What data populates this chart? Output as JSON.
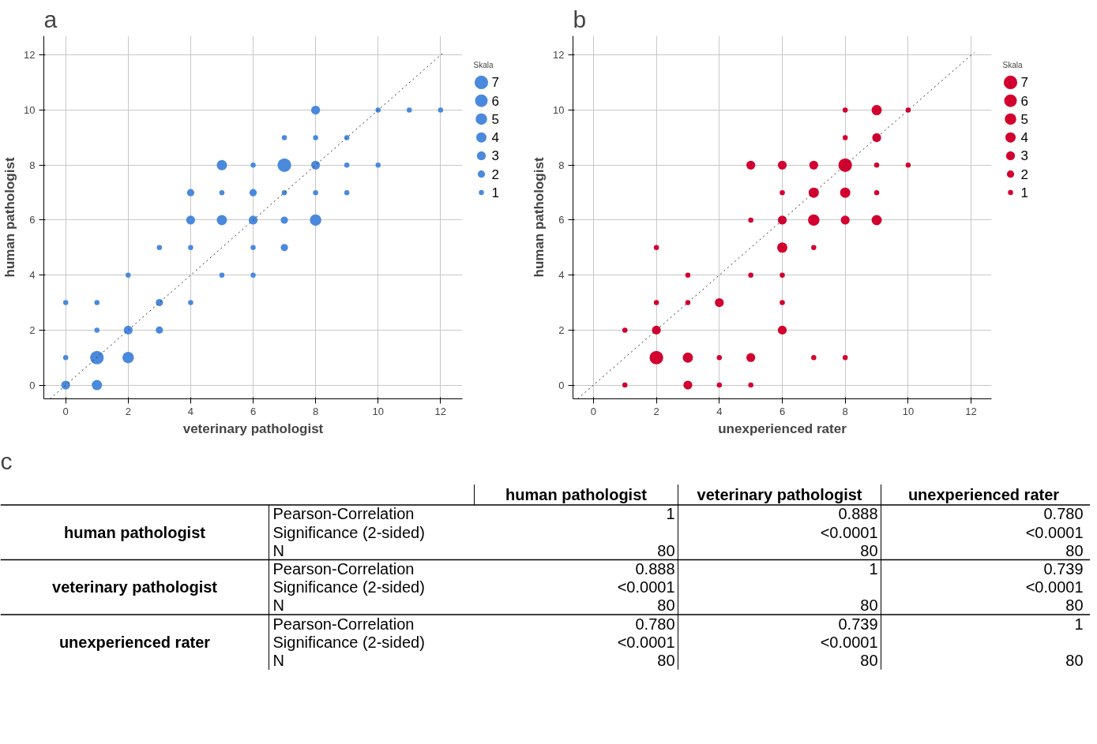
{
  "chart_data": [
    {
      "type": "bubble",
      "title": "a",
      "xlabel": "veterinary pathologist",
      "ylabel": "human pathologist",
      "legend_title": "Skala",
      "size_legend": [
        7,
        6,
        5,
        4,
        3,
        2,
        1
      ],
      "grid": true,
      "xlim": [
        -0.7,
        12.7
      ],
      "ylim": [
        -0.5,
        12.7
      ],
      "xticks": [
        0,
        2,
        4,
        6,
        8,
        10,
        12
      ],
      "yticks": [
        0,
        2,
        4,
        6,
        8,
        10,
        12
      ],
      "series": [
        {
          "type": "bubble",
          "color": "#4a89dc",
          "x": [
            0,
            1,
            0,
            1,
            2,
            1,
            2,
            3,
            0,
            1,
            3,
            4,
            2,
            5,
            6,
            3,
            4,
            6,
            7,
            4,
            5,
            6,
            7,
            8,
            4,
            5,
            6,
            7,
            8,
            9,
            5,
            6,
            7,
            8,
            9,
            10,
            7,
            8,
            9,
            8,
            10,
            11,
            12
          ],
          "values": [
            0,
            0,
            1,
            1,
            1,
            2,
            2,
            2,
            3,
            3,
            3,
            3,
            4,
            4,
            4,
            5,
            5,
            5,
            5,
            6,
            6,
            6,
            6,
            6,
            7,
            7,
            7,
            7,
            7,
            7,
            8,
            8,
            8,
            8,
            8,
            8,
            9,
            9,
            9,
            10,
            10,
            10,
            10
          ],
          "sizes": [
            3,
            4,
            1,
            7,
            5,
            1,
            3,
            2,
            1,
            1,
            2,
            1,
            1,
            1,
            1,
            1,
            1,
            1,
            2,
            3,
            4,
            3,
            2,
            5,
            2,
            1,
            2,
            1,
            1,
            1,
            4,
            1,
            7,
            3,
            1,
            1,
            1,
            1,
            1,
            3,
            1,
            1,
            1
          ]
        },
        {
          "type": "line",
          "color": "#333333",
          "line_style": "dotted",
          "x": [
            -0.5,
            12.1
          ],
          "values": [
            -0.5,
            12.1
          ]
        }
      ]
    },
    {
      "type": "bubble",
      "title": "b",
      "xlabel": "unexperienced rater",
      "ylabel": "human pathologist",
      "legend_title": "Skala",
      "size_legend": [
        7,
        6,
        5,
        4,
        3,
        2,
        1
      ],
      "grid": true,
      "xlim": [
        -0.65,
        12.65
      ],
      "ylim": [
        -0.5,
        12.7
      ],
      "xticks": [
        0,
        2,
        4,
        6,
        8,
        10,
        12
      ],
      "yticks": [
        0,
        2,
        4,
        6,
        8,
        10,
        12
      ],
      "series": [
        {
          "type": "bubble",
          "color": "#d2002f",
          "x": [
            1,
            3,
            4,
            5,
            2,
            3,
            4,
            5,
            7,
            8,
            1,
            2,
            6,
            2,
            3,
            4,
            6,
            3,
            5,
            6,
            2,
            6,
            7,
            5,
            6,
            7,
            8,
            9,
            6,
            7,
            8,
            9,
            5,
            6,
            7,
            8,
            9,
            10,
            8,
            9,
            8,
            9,
            10
          ],
          "values": [
            0,
            0,
            0,
            0,
            1,
            1,
            1,
            1,
            1,
            1,
            2,
            2,
            2,
            3,
            3,
            3,
            3,
            4,
            4,
            4,
            5,
            5,
            5,
            6,
            6,
            6,
            6,
            6,
            7,
            7,
            7,
            7,
            8,
            8,
            8,
            8,
            8,
            8,
            9,
            9,
            10,
            10,
            10
          ],
          "sizes": [
            1,
            3,
            1,
            1,
            7,
            4,
            1,
            3,
            1,
            1,
            1,
            3,
            3,
            1,
            1,
            3,
            1,
            1,
            1,
            1,
            1,
            4,
            1,
            1,
            3,
            5,
            3,
            4,
            1,
            4,
            4,
            1,
            3,
            3,
            3,
            7,
            1,
            1,
            1,
            3,
            1,
            4,
            1
          ]
        },
        {
          "type": "line",
          "color": "#333333",
          "line_style": "dotted",
          "x": [
            -0.5,
            12.1
          ],
          "values": [
            -0.5,
            12.1
          ]
        }
      ]
    },
    {
      "type": "other",
      "title": "c",
      "categories": [
        "human pathologist",
        "veterinary pathologist",
        "unexperienced rater"
      ],
      "y_categories": [
        "human pathologist",
        "veterinary pathologist",
        "unexperienced rater"
      ],
      "y2_categories": [
        "Pearson-Correlation",
        "Significance (2-sided)",
        "N"
      ],
      "cell_labels": [
        [
          "1",
          "0.888",
          "0.780"
        ],
        [
          null,
          "<0.0001",
          "<0.0001"
        ],
        [
          "80",
          "80",
          "80"
        ],
        [
          "0.888",
          "1",
          "0.739"
        ],
        [
          "<0.0001",
          null,
          "<0.0001"
        ],
        [
          "80",
          "80",
          "80"
        ],
        [
          "0.780",
          "0.739",
          "1"
        ],
        [
          "<0.0001",
          "<0.0001",
          null
        ],
        [
          "80",
          "80",
          "80"
        ]
      ]
    }
  ]
}
